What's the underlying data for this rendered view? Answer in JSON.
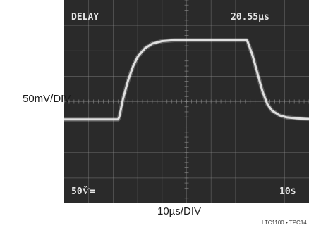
{
  "chart_data": {
    "type": "line",
    "ylabel": "50mV/DIV",
    "xlabel": "10µs/DIV",
    "footnote": "LTC1100 • TPC14",
    "readouts": {
      "top_left": "DELAY",
      "top_right": "20.55µs",
      "bottom_left": "50Ѷ=",
      "bottom_right": "10$"
    },
    "divisions": {
      "x": 10,
      "y": 8
    },
    "grid": true,
    "xlim": [
      0,
      100
    ],
    "ylim": [
      -200,
      200
    ],
    "series": [
      {
        "values_x": [
          0,
          22,
          22.5,
          24,
          26,
          28,
          30,
          33,
          36,
          40,
          45,
          50,
          55,
          60,
          65,
          70,
          74.5,
          75,
          77,
          79,
          81,
          83,
          85,
          88,
          91,
          95,
          100
        ],
        "values_y": [
          -35,
          -35,
          -30,
          5,
          40,
          68,
          88,
          105,
          114,
          119,
          121,
          121,
          121,
          121,
          121,
          121,
          121,
          117,
          90,
          55,
          20,
          -5,
          -18,
          -27,
          -31,
          -33,
          -34
        ]
      }
    ],
    "colors": {
      "screen": "#2a2a2a",
      "grid": "#8a8a8a",
      "trace": "#ededed",
      "text": "#e6e6e6"
    }
  }
}
